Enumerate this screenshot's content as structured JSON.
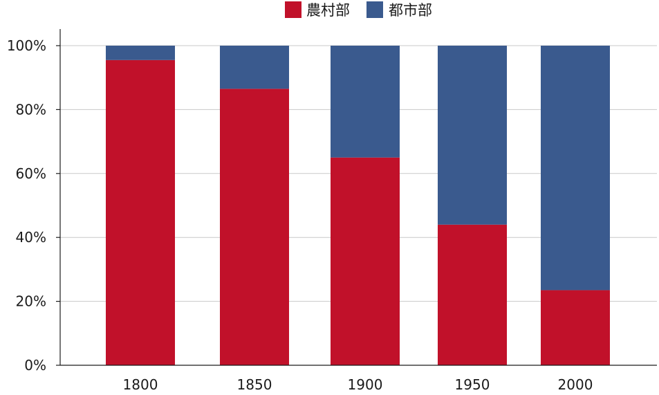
{
  "chart_data": {
    "type": "bar",
    "stacked": true,
    "categories": [
      "1800",
      "1850",
      "1900",
      "1950",
      "2000"
    ],
    "series": [
      {
        "name": "農村部",
        "color": "#c1112a",
        "values": [
          95.5,
          86.5,
          65,
          44,
          23.5
        ]
      },
      {
        "name": "都市部",
        "color": "#3a5a8e",
        "values": [
          4.5,
          13.5,
          35,
          56,
          76.5
        ]
      }
    ],
    "ylim": [
      0,
      100
    ],
    "yticks": [
      0,
      20,
      40,
      60,
      80,
      100
    ],
    "ytick_labels": [
      "0%",
      "20%",
      "40%",
      "60%",
      "80%",
      "100%"
    ],
    "grid": true,
    "legend_position": "top-center",
    "title": "",
    "xlabel": "",
    "ylabel": ""
  }
}
